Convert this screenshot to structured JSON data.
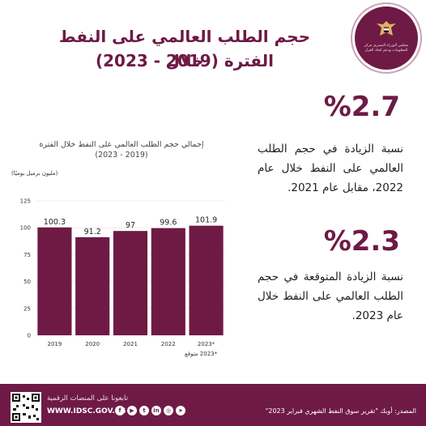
{
  "header": {
    "title_line1": "حجم الطلب العالمي على النفط خلال",
    "title_line2": "الفترة (2019 - 2023)",
    "logo_text": "مجلس الوزراء المصري مركز المعلومات ودعم اتخاذ القرار"
  },
  "stats": [
    {
      "value": "%2.7",
      "text": "نسبة الزيادة  في حجم الطلب العالمي على النفط خلال عام 2022، مقابل عام 2021."
    },
    {
      "value": "%2.3",
      "text": "نسبة الزيادة المتوقعة في حجم الطلب العالمي على النفط خلال عام 2023."
    }
  ],
  "chart_data": {
    "type": "bar",
    "title_line1": "إجمالي حجم الطلب العالمي على النفط  خلال الفترة",
    "title_line2": "(2019 - 2023)",
    "unit_label": "(مليون برميل يوميًا)",
    "categories": [
      "2019",
      "2020",
      "2021",
      "2022",
      "2023*"
    ],
    "values": [
      100.3,
      91.2,
      97,
      99.6,
      101.9
    ],
    "value_labels": [
      "100.3",
      "91.2",
      "97",
      "99.6",
      "101.9"
    ],
    "yticks": [
      0,
      25,
      50,
      75,
      100,
      125
    ],
    "ylim": [
      0,
      125
    ],
    "note": "*2023 متوقع",
    "bar_color": "#6e1a45",
    "grid": true
  },
  "footer": {
    "follow_label": "تابعونا على المنصات الرقمية",
    "website": "WWW.IDSC.GOV.EG",
    "social_icons": [
      "facebook-icon",
      "youtube-icon",
      "twitter-icon",
      "linkedin-icon",
      "instagram-icon",
      "telegram-icon"
    ],
    "source": "المصدر: أوبك \"تقرير سوق النفط الشهري فبراير 2023\""
  },
  "colors": {
    "brand": "#6e1a45",
    "text": "#1e1e1e"
  }
}
